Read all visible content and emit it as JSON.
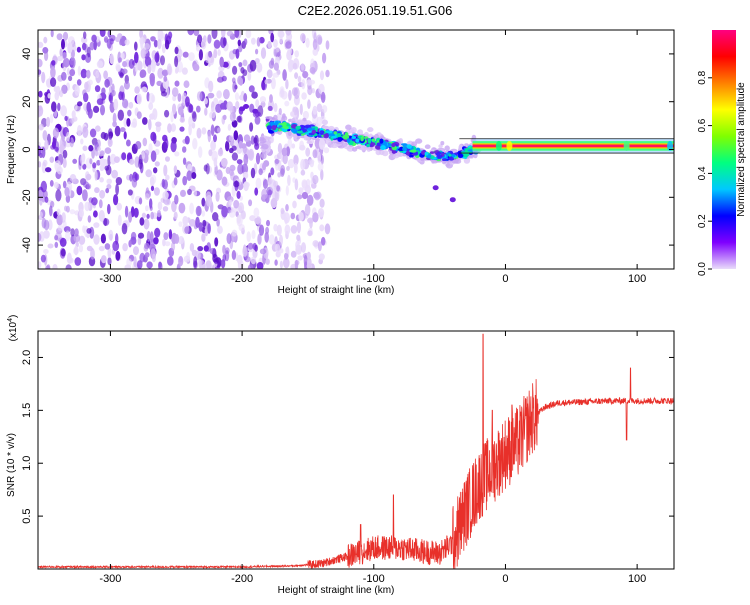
{
  "title": "C2E2.2026.051.19.51.G06",
  "chart_data": [
    {
      "type": "heatmap",
      "xlabel": "Height of straight line (km)",
      "ylabel": "Frequency (Hz)",
      "xlim": [
        -355,
        128
      ],
      "ylim": [
        -50,
        50
      ],
      "xticks": [
        -300,
        -200,
        -100,
        0,
        100
      ],
      "yticks": [
        -40,
        -20,
        0,
        20,
        40
      ],
      "colorbar": {
        "label": "Normalized spectral amplitude",
        "range": [
          0,
          1
        ],
        "ticks": [
          "0.0",
          "0.2",
          "0.4",
          "0.6",
          "0.8"
        ],
        "colors": [
          "#e9dcfa",
          "#7f00ff",
          "#0000ff",
          "#00c8ff",
          "#00ff80",
          "#80ff00",
          "#ffff00",
          "#ff8000",
          "#ff0000",
          "#ff0080"
        ]
      },
      "features": {
        "noise_region_x": [
          -355,
          -145
        ],
        "trend_line": [
          [
            -180,
            10
          ],
          [
            -140,
            7
          ],
          [
            -100,
            3
          ],
          [
            -60,
            -2
          ],
          [
            -40,
            -3
          ],
          [
            -20,
            1
          ],
          [
            0,
            1.5
          ],
          [
            128,
            1.5
          ]
        ],
        "strong_band_x": [
          -25,
          128
        ],
        "strong_band_freq": 1.5
      }
    },
    {
      "type": "line",
      "xlabel": "Height of straight line (km)",
      "ylabel": "SNR (10 * v/v)",
      "multiplier": "(x10",
      "multiplier_exp": "4",
      "xlim": [
        -355,
        128
      ],
      "ylim": [
        0,
        2.25
      ],
      "xticks": [
        -300,
        -200,
        -100,
        0,
        100
      ],
      "yticks": [
        0.5,
        1.0,
        1.5,
        2.0
      ],
      "color": "#e8302a",
      "profile": [
        [
          -355,
          0.02
        ],
        [
          -200,
          0.02
        ],
        [
          -160,
          0.03
        ],
        [
          -140,
          0.05
        ],
        [
          -120,
          0.12
        ],
        [
          -100,
          0.2
        ],
        [
          -80,
          0.2
        ],
        [
          -60,
          0.16
        ],
        [
          -50,
          0.15
        ],
        [
          -40,
          0.25
        ],
        [
          -30,
          0.55
        ],
        [
          -20,
          0.8
        ],
        [
          -10,
          0.95
        ],
        [
          0,
          1.1
        ],
        [
          10,
          1.2
        ],
        [
          20,
          1.42
        ],
        [
          30,
          1.53
        ],
        [
          40,
          1.57
        ],
        [
          80,
          1.59
        ],
        [
          128,
          1.59
        ]
      ],
      "spikes": [
        [
          -17,
          2.22
        ],
        [
          95,
          1.9
        ],
        [
          92,
          1.22
        ],
        [
          -85,
          0.7
        ],
        [
          -110,
          0.42
        ],
        [
          5,
          1.55
        ],
        [
          -10,
          1.5
        ]
      ]
    }
  ]
}
